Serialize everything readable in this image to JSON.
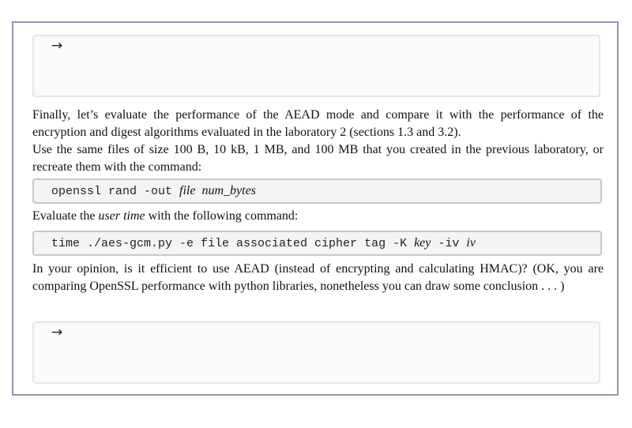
{
  "answer_box_1": {
    "arrow": "→"
  },
  "intro": {
    "line1": "Finally, let’s evaluate the performance of the AEAD mode and compare it with the performance of the encryption and digest algorithms evaluated in the laboratory 2 (sections 1.3 and 3.2).",
    "line2": "Use the same files of size 100 B, 10 kB, 1 MB, and 100 MB that you created in the previous laboratory, or recreate them with the command:"
  },
  "cmd1": {
    "code": "openssl rand -out ",
    "arg1": "file",
    "arg2": "num_bytes"
  },
  "evaluate": {
    "prefix": "Evaluate the ",
    "emph": "user time",
    "suffix": " with the following command:"
  },
  "cmd2": {
    "code1": "time ./aes-gcm.py -e file associated cipher tag -K ",
    "arg_key": "key",
    "code2": " -iv ",
    "arg_iv": "iv"
  },
  "question": {
    "text": "In your opinion, is it efficient to use AEAD (instead of encrypting and calculating HMAC)? (OK, you are comparing OpenSSL performance with python libraries, nonetheless you can draw some conclusion . . . )"
  },
  "answer_box_2": {
    "arrow": "→"
  }
}
